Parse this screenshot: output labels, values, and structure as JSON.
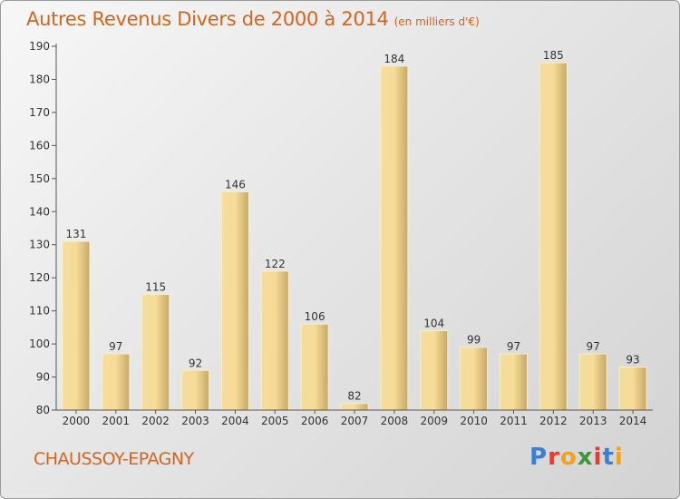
{
  "title": "Autres Revenus Divers de 2000 à 2014",
  "title_unit": "(en milliers d'€)",
  "city": "CHAUSSOY-EPAGNY",
  "brand": "Proxiti",
  "brand_colors": [
    "#3a7fd5",
    "#e53c2e",
    "#f2a21b",
    "#3a9a3a",
    "#e53c2e",
    "#3a7fd5",
    "#f2a21b"
  ],
  "colors": {
    "title": "#d5641c",
    "bar_light": "#f6dc96",
    "bar_dark": "#c6a868",
    "axis": "#555555"
  },
  "chart_data": {
    "type": "bar",
    "categories": [
      "2000",
      "2001",
      "2002",
      "2003",
      "2004",
      "2005",
      "2006",
      "2007",
      "2008",
      "2009",
      "2010",
      "2011",
      "2012",
      "2013",
      "2014"
    ],
    "values": [
      131,
      97,
      115,
      92,
      146,
      122,
      106,
      82,
      184,
      104,
      99,
      97,
      185,
      97,
      93
    ],
    "ylim": [
      80,
      190
    ],
    "yticks": [
      80,
      90,
      100,
      110,
      120,
      130,
      140,
      150,
      160,
      170,
      180,
      190
    ],
    "grid": false,
    "legend": "none",
    "data_labels": true
  }
}
